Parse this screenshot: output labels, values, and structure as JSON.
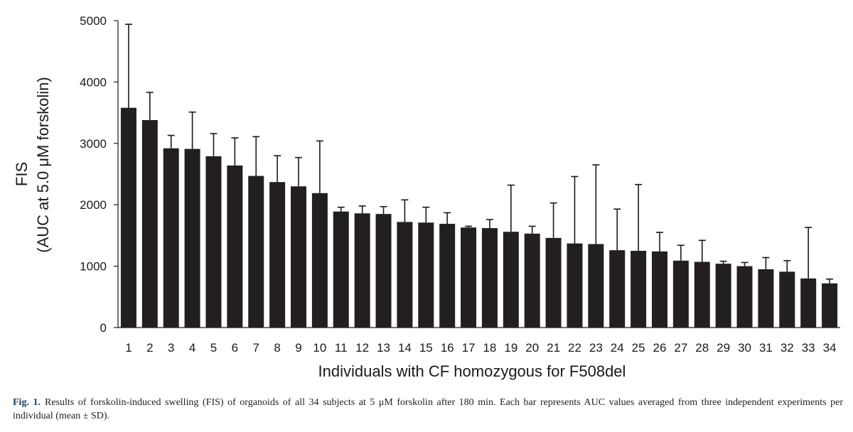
{
  "chart_data": {
    "type": "bar",
    "title": "",
    "xlabel": "Individuals with CF homozygous for F508del",
    "ylabel_line1": "FIS",
    "ylabel_line2": "(AUC at 5.0 μM forskolin)",
    "ylim": [
      0,
      5000
    ],
    "yticks": [
      0,
      1000,
      2000,
      3000,
      4000,
      5000
    ],
    "grid": false,
    "legend": "none",
    "bar_color": "#231f20",
    "error_bars": "positive SD",
    "categories": [
      "1",
      "2",
      "3",
      "4",
      "5",
      "6",
      "7",
      "8",
      "9",
      "10",
      "11",
      "12",
      "13",
      "14",
      "15",
      "16",
      "17",
      "18",
      "19",
      "20",
      "21",
      "22",
      "23",
      "24",
      "25",
      "26",
      "27",
      "28",
      "29",
      "30",
      "31",
      "32",
      "33",
      "34"
    ],
    "values": [
      3580,
      3380,
      2920,
      2910,
      2790,
      2640,
      2470,
      2370,
      2300,
      2190,
      1890,
      1860,
      1850,
      1720,
      1710,
      1690,
      1630,
      1620,
      1560,
      1530,
      1460,
      1370,
      1360,
      1260,
      1250,
      1240,
      1090,
      1070,
      1040,
      1000,
      950,
      910,
      800,
      720
    ],
    "errors": [
      1360,
      450,
      210,
      600,
      370,
      450,
      640,
      430,
      470,
      850,
      70,
      120,
      120,
      360,
      250,
      180,
      20,
      140,
      760,
      120,
      570,
      1090,
      1290,
      670,
      1080,
      310,
      250,
      350,
      40,
      60,
      190,
      180,
      830,
      70
    ]
  },
  "caption": {
    "label": "Fig. 1.",
    "text": "Results of forskolin-induced swelling (FIS) of organoids of all 34 subjects at 5 μM forskolin after 180 min. Each bar represents AUC values averaged from three independent experiments per individual (mean ± SD)."
  }
}
